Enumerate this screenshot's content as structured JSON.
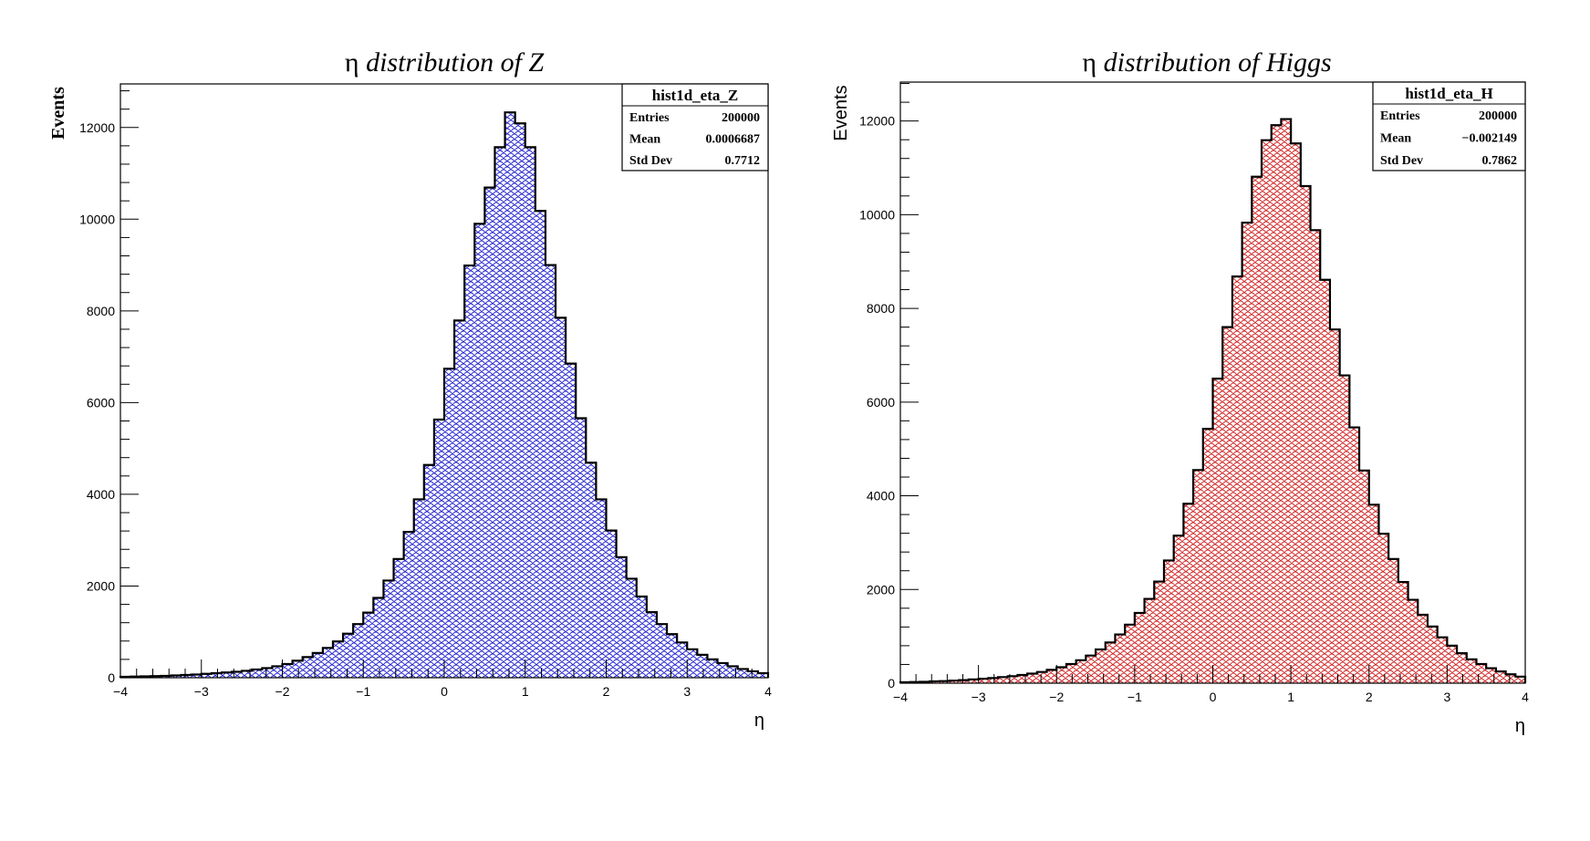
{
  "chart_data": [
    {
      "type": "bar",
      "id": "hist-z",
      "title_symbol": "η",
      "title_text": "distribution of Z",
      "xlabel": "η",
      "ylabel": "Events",
      "xlim": [
        -4,
        4
      ],
      "ylim": [
        0,
        12950
      ],
      "xticks": [
        -4,
        -3,
        -2,
        -1,
        0,
        1,
        2,
        3,
        4
      ],
      "xtick_labels": [
        "−4",
        "−3",
        "−2",
        "−1",
        "0",
        "1",
        "2",
        "3",
        "4"
      ],
      "yticks": [
        0,
        2000,
        4000,
        6000,
        8000,
        10000,
        12000
      ],
      "ytick_labels": [
        "0",
        "2000",
        "4000",
        "6000",
        "8000",
        "10000",
        "12000"
      ],
      "bin_edges_range": [
        -4,
        4
      ],
      "bin_count": 64,
      "fill_color": "#2020d0",
      "line_color": "#000000",
      "values": [
        20,
        25,
        30,
        35,
        40,
        50,
        60,
        70,
        85,
        100,
        115,
        130,
        150,
        180,
        210,
        250,
        300,
        370,
        450,
        540,
        650,
        790,
        960,
        1170,
        1420,
        1740,
        2120,
        2590,
        3180,
        3890,
        4640,
        5630,
        6740,
        7790,
        8990,
        9900,
        10690,
        11570,
        12330,
        12090,
        11570,
        10180,
        9000,
        7850,
        6850,
        5660,
        4690,
        3890,
        3210,
        2630,
        2160,
        1770,
        1430,
        1170,
        950,
        770,
        620,
        500,
        400,
        320,
        250,
        190,
        140,
        100
      ],
      "stats": {
        "name": "hist1d_eta_Z",
        "rows": [
          {
            "label": "Entries",
            "value": "200000"
          },
          {
            "label": "Mean",
            "value": "0.0006687"
          },
          {
            "label": "Std Dev",
            "value": "0.7712"
          }
        ]
      }
    },
    {
      "type": "bar",
      "id": "hist-h",
      "title_symbol": "η",
      "title_text": "distribution of Higgs",
      "xlabel": "η",
      "ylabel": "Events",
      "xlim": [
        -4,
        4
      ],
      "ylim": [
        0,
        12830
      ],
      "xticks": [
        -4,
        -3,
        -2,
        -1,
        0,
        1,
        2,
        3,
        4
      ],
      "xtick_labels": [
        "−4",
        "−3",
        "−2",
        "−1",
        "0",
        "1",
        "2",
        "3",
        "4"
      ],
      "yticks": [
        0,
        2000,
        4000,
        6000,
        8000,
        10000,
        12000
      ],
      "ytick_labels": [
        "0",
        "2000",
        "4000",
        "6000",
        "8000",
        "10000",
        "12000"
      ],
      "bin_edges_range": [
        -4,
        4
      ],
      "bin_count": 64,
      "fill_color": "#d02020",
      "line_color": "#000000",
      "values": [
        20,
        25,
        30,
        40,
        45,
        55,
        65,
        80,
        95,
        110,
        130,
        150,
        175,
        205,
        240,
        285,
        340,
        410,
        490,
        590,
        720,
        870,
        1040,
        1250,
        1500,
        1800,
        2170,
        2620,
        3150,
        3830,
        4550,
        5430,
        6500,
        7600,
        8680,
        9830,
        10810,
        11590,
        11910,
        12040,
        11520,
        10610,
        9670,
        8610,
        7550,
        6570,
        5460,
        4540,
        3810,
        3190,
        2650,
        2160,
        1780,
        1460,
        1210,
        980,
        800,
        640,
        510,
        410,
        320,
        250,
        190,
        140
      ],
      "stats": {
        "name": "hist1d_eta_H",
        "rows": [
          {
            "label": "Entries",
            "value": "200000"
          },
          {
            "label": "Mean",
            "value": "−0.002149"
          },
          {
            "label": "Std Dev",
            "value": "0.7862"
          }
        ]
      }
    }
  ]
}
